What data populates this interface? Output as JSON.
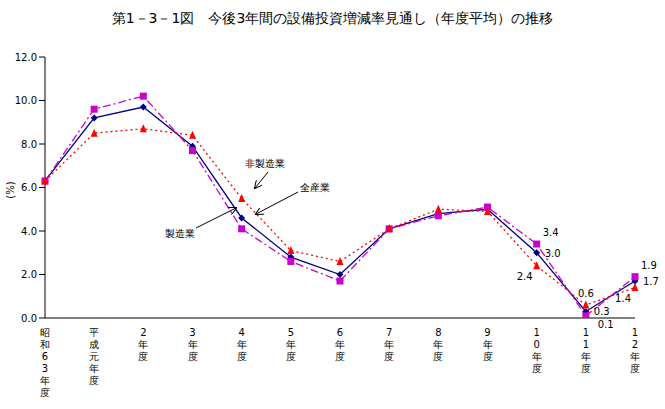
{
  "chart_data": {
    "type": "line",
    "title": "第1－3－1図　今後3年間の設備投資増減率見通し（年度平均）の推移",
    "y_label": "(%)",
    "categories": [
      "昭和63年度",
      "平成元年度",
      "2年度",
      "3年度",
      "4年度",
      "5年度",
      "6年度",
      "7年度",
      "8年度",
      "9年度",
      "10年度",
      "11年度",
      "12年度"
    ],
    "series": [
      {
        "name": "全産業",
        "color": "#000080",
        "marker": "diamond",
        "line_style": "solid",
        "values": [
          6.3,
          9.2,
          9.7,
          7.9,
          4.6,
          2.8,
          2.0,
          4.1,
          4.8,
          5.0,
          3.0,
          0.3,
          1.7
        ],
        "value_labels": [
          null,
          null,
          null,
          null,
          null,
          null,
          null,
          null,
          null,
          null,
          "3.0",
          "0.3",
          "1.7"
        ]
      },
      {
        "name": "製造業",
        "color": "#cc00cc",
        "marker": "square",
        "line_style": "dashed",
        "values": [
          6.3,
          9.6,
          10.2,
          7.7,
          4.1,
          2.6,
          1.7,
          4.1,
          4.7,
          5.1,
          3.4,
          0.1,
          1.9
        ],
        "value_labels": [
          null,
          null,
          null,
          null,
          null,
          null,
          null,
          null,
          null,
          null,
          "3.4",
          "0.1",
          "1.9"
        ]
      },
      {
        "name": "非製造業",
        "color": "#ff0000",
        "marker": "triangle",
        "line_style": "dotted",
        "values": [
          6.3,
          8.5,
          8.7,
          8.4,
          5.5,
          3.1,
          2.6,
          4.1,
          5.0,
          4.9,
          2.4,
          0.6,
          1.4
        ],
        "value_labels": [
          null,
          null,
          null,
          null,
          null,
          null,
          null,
          null,
          null,
          null,
          "2.4",
          "0.6",
          "1.4"
        ]
      }
    ],
    "ylim": [
      0,
      12
    ],
    "yticks": [
      {
        "value": 0,
        "label": "0.0"
      },
      {
        "value": 2,
        "label": "2.0"
      },
      {
        "value": 4,
        "label": "4.0"
      },
      {
        "value": 6,
        "label": "6.0"
      },
      {
        "value": 8,
        "label": "8.0"
      },
      {
        "value": 10,
        "label": "10.0"
      },
      {
        "value": 12,
        "label": "12.0"
      }
    ],
    "data_labels": true,
    "grid": false
  }
}
